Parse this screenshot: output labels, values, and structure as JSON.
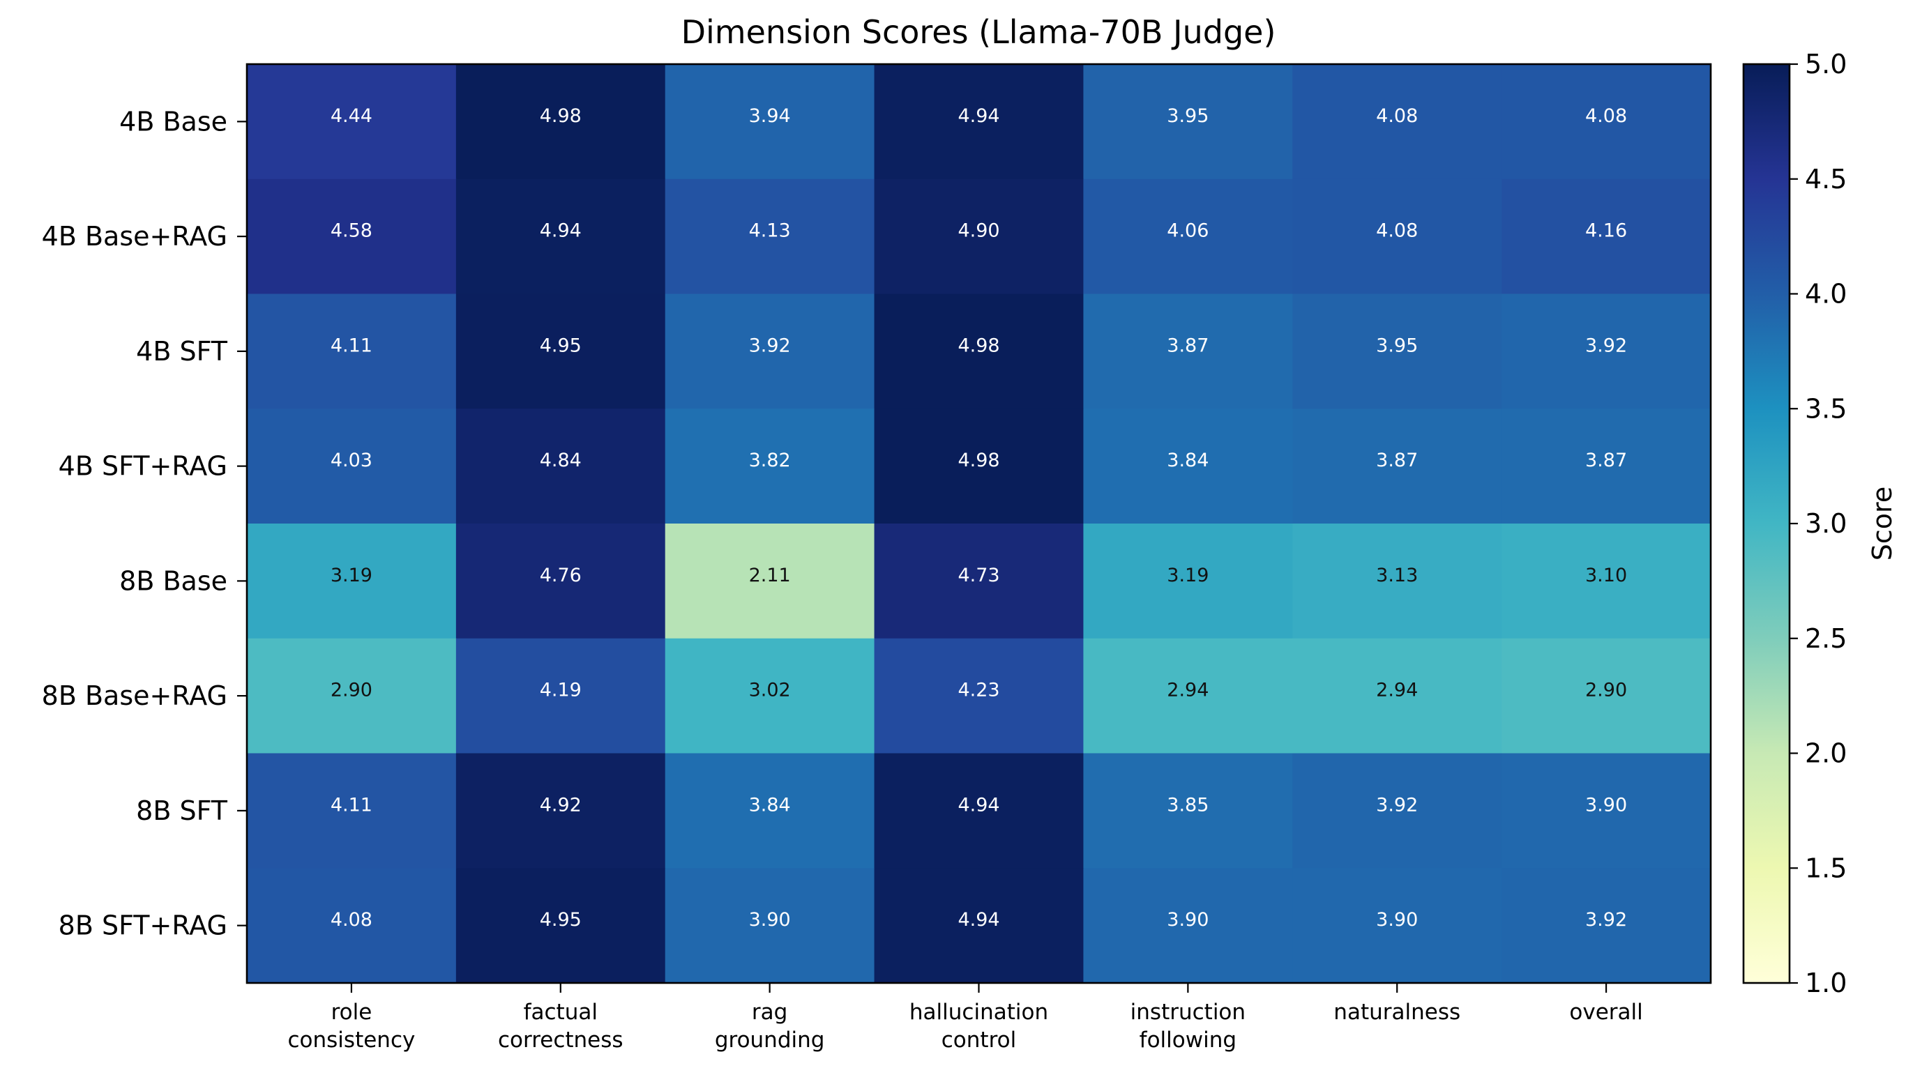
{
  "chart_data": {
    "type": "heatmap",
    "title": "Dimension Scores (Llama-70B Judge)",
    "rows": [
      "4B Base",
      "4B Base+RAG",
      "4B SFT",
      "4B SFT+RAG",
      "8B Base",
      "8B Base+RAG",
      "8B SFT",
      "8B SFT+RAG"
    ],
    "columns": [
      [
        "role",
        "consistency"
      ],
      [
        "factual",
        "correctness"
      ],
      [
        "rag",
        "grounding"
      ],
      [
        "hallucination",
        "control"
      ],
      [
        "instruction",
        "following"
      ],
      [
        "naturalness"
      ],
      [
        "overall"
      ]
    ],
    "values": [
      [
        4.44,
        4.98,
        3.94,
        4.94,
        3.95,
        4.08,
        4.08
      ],
      [
        4.58,
        4.94,
        4.13,
        4.9,
        4.06,
        4.08,
        4.16
      ],
      [
        4.11,
        4.95,
        3.92,
        4.98,
        3.87,
        3.95,
        3.92
      ],
      [
        4.03,
        4.84,
        3.82,
        4.98,
        3.84,
        3.87,
        3.87
      ],
      [
        3.19,
        4.76,
        2.11,
        4.73,
        3.19,
        3.13,
        3.1
      ],
      [
        2.9,
        4.19,
        3.02,
        4.23,
        2.94,
        2.94,
        2.9
      ],
      [
        4.11,
        4.92,
        3.84,
        4.94,
        3.85,
        3.92,
        3.9
      ],
      [
        4.08,
        4.95,
        3.9,
        4.94,
        3.9,
        3.9,
        3.92
      ]
    ],
    "value_labels": [
      [
        "4.44",
        "4.98",
        "3.94",
        "4.94",
        "3.95",
        "4.08",
        "4.08"
      ],
      [
        "4.58",
        "4.94",
        "4.13",
        "4.90",
        "4.06",
        "4.08",
        "4.16"
      ],
      [
        "4.11",
        "4.95",
        "3.92",
        "4.98",
        "3.87",
        "3.95",
        "3.92"
      ],
      [
        "4.03",
        "4.84",
        "3.82",
        "4.98",
        "3.84",
        "3.87",
        "3.87"
      ],
      [
        "3.19",
        "4.76",
        "2.11",
        "4.73",
        "3.19",
        "3.13",
        "3.10"
      ],
      [
        "2.90",
        "4.19",
        "3.02",
        "4.23",
        "2.94",
        "2.94",
        "2.90"
      ],
      [
        "4.11",
        "4.92",
        "3.84",
        "4.94",
        "3.85",
        "3.92",
        "3.90"
      ],
      [
        "4.08",
        "4.95",
        "3.90",
        "4.94",
        "3.90",
        "3.90",
        "3.92"
      ]
    ],
    "colorbar": {
      "label": "Score",
      "vmin": 1.0,
      "vmax": 5.0,
      "ticks": [
        1.0,
        1.5,
        2.0,
        2.5,
        3.0,
        3.5,
        4.0,
        4.5,
        5.0
      ],
      "tick_labels": [
        "1.0",
        "1.5",
        "2.0",
        "2.5",
        "3.0",
        "3.5",
        "4.0",
        "4.5",
        "5.0"
      ],
      "colormap": "YlGnBu",
      "colormap_stops": [
        "#ffffd9",
        "#edf8b1",
        "#c7e9b4",
        "#7fcdbb",
        "#41b6c4",
        "#1d91c0",
        "#225ea8",
        "#253494",
        "#081d58"
      ]
    },
    "grid": false,
    "legend": "none"
  }
}
